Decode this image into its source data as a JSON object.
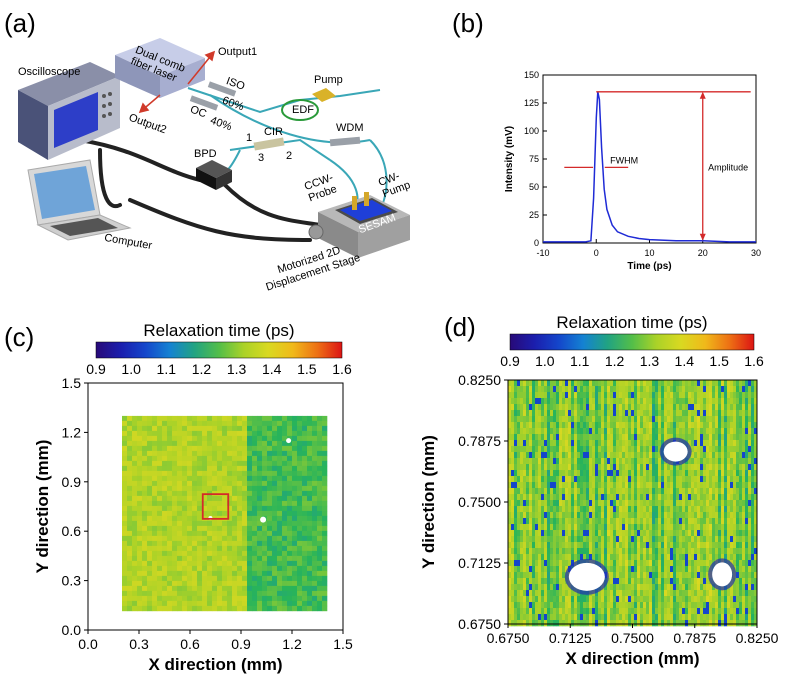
{
  "panels": {
    "a": {
      "letter": "(a)",
      "labels": {
        "oscilloscope": "Oscilloscope",
        "dual_comb_line1": "Dual  comb",
        "dual_comb_line2": "fiber laser",
        "output1": "Output1",
        "output2": "Output2",
        "iso": "ISO",
        "oc": "OC",
        "pct60": "60%",
        "pct40": "40%",
        "edf": "EDF",
        "pump": "Pump",
        "wdm": "WDM",
        "cir": "CIR",
        "port1": "1",
        "port2": "2",
        "port3": "3",
        "bpd": "BPD",
        "ccw_probe_line1": "CCW-",
        "ccw_probe_line2": "Probe",
        "cw_pump_line1": "CW-",
        "cw_pump_line2": "Pump",
        "sesam": "SESAM",
        "computer": "Computer",
        "stage_line1": "Motorized 2D",
        "stage_line2": "Displacement Stage"
      }
    },
    "b": {
      "letter": "(b)",
      "fwhm": "FWHM",
      "amplitude": "Amplitude"
    },
    "c": {
      "letter": "(c)",
      "colorbar_title": "Relaxation time (ps)",
      "colorbar_ticks": [
        "0.9",
        "1.0",
        "1.1",
        "1.2",
        "1.3",
        "1.4",
        "1.5",
        "1.6"
      ]
    },
    "d": {
      "letter": "(d)",
      "colorbar_title": "Relaxation time (ps)",
      "colorbar_ticks": [
        "0.9",
        "1.0",
        "1.1",
        "1.2",
        "1.3",
        "1.4",
        "1.5",
        "1.6"
      ]
    }
  },
  "chart_data": [
    {
      "type": "line",
      "panel": "b",
      "xlabel": "Time (ps)",
      "ylabel": "Intensity (mV)",
      "xlim": [
        -10,
        30
      ],
      "ylim": [
        0,
        150
      ],
      "xticks": [
        "-10",
        "0",
        "10",
        "20",
        "30"
      ],
      "yticks": [
        "0",
        "25",
        "50",
        "75",
        "100",
        "125",
        "150"
      ],
      "series": [
        {
          "color": "#1f2bd6",
          "x": [
            -10,
            -5,
            -2,
            -1,
            -0.5,
            0,
            0.3,
            0.6,
            1,
            1.5,
            2,
            3,
            4,
            6,
            8,
            10,
            15,
            20,
            25,
            30
          ],
          "y": [
            1,
            1,
            1,
            2,
            40,
            112,
            135,
            128,
            85,
            48,
            30,
            16,
            10,
            6,
            4,
            3,
            2,
            2,
            1,
            1
          ]
        }
      ],
      "annotations": {
        "peak": 135
      }
    },
    {
      "type": "heatmap",
      "panel": "c",
      "xlabel": "X direction (mm)",
      "ylabel": "Y direction (mm)",
      "xlim": [
        0.0,
        1.5
      ],
      "ylim": [
        0.0,
        1.5
      ],
      "xticks": [
        "0.0",
        "0.3",
        "0.6",
        "0.9",
        "1.2",
        "1.5"
      ],
      "yticks": [
        "0.0",
        "0.3",
        "0.6",
        "0.9",
        "1.2",
        "1.5"
      ],
      "colorbar_range": [
        0.9,
        1.6
      ],
      "highlight_box_mm": {
        "x": [
          0.675,
          0.825
        ],
        "y": [
          0.675,
          0.825
        ]
      }
    },
    {
      "type": "heatmap",
      "panel": "d",
      "xlabel": "X direction (mm)",
      "ylabel": "Y direction (mm)",
      "xlim": [
        0.675,
        0.825
      ],
      "ylim": [
        0.675,
        0.825
      ],
      "xticks": [
        "0.6750",
        "0.7125",
        "0.7500",
        "0.7875",
        "0.8250"
      ],
      "yticks": [
        "0.6750",
        "0.7125",
        "0.7500",
        "0.7875",
        "0.8250"
      ],
      "colorbar_range": [
        0.9,
        1.6
      ]
    }
  ]
}
